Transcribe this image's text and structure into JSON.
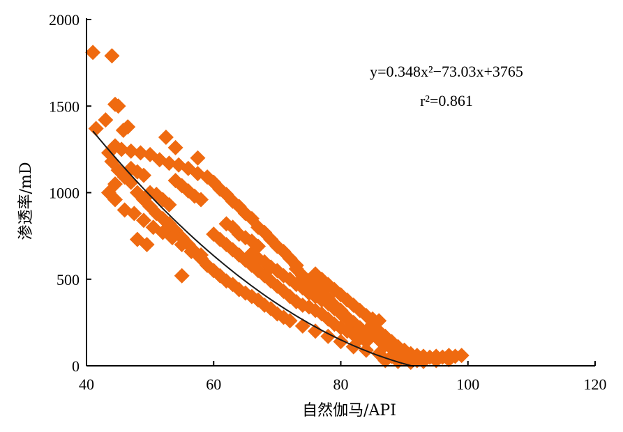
{
  "chart_data": {
    "type": "scatter",
    "xlabel": "自然伽马/API",
    "ylabel": "渗透率/mD",
    "xlim": [
      40,
      120
    ],
    "ylim": [
      0,
      2000
    ],
    "xticks": [
      40,
      60,
      80,
      100,
      120
    ],
    "yticks": [
      0,
      500,
      1000,
      1500,
      2000
    ],
    "grid": false,
    "point_color": "#ef6a10",
    "curve_color": "#1a1a1a",
    "fit": {
      "equation_label": "y=0.348x²−73.03x+3765",
      "r2_label": "r²=0.861",
      "coefficients": {
        "a": 0.348,
        "b": -73.03,
        "c": 3765
      },
      "x_range": [
        41,
        91.5
      ]
    },
    "series": [
      {
        "points": [
          [
            41,
            1810
          ],
          [
            44,
            1790
          ],
          [
            44.5,
            1510
          ],
          [
            45,
            1500
          ],
          [
            41.5,
            1370
          ],
          [
            43,
            1420
          ],
          [
            46.5,
            1380
          ],
          [
            45.8,
            1360
          ],
          [
            52.5,
            1320
          ],
          [
            54,
            1260
          ],
          [
            57.5,
            1200
          ],
          [
            44.5,
            1050
          ],
          [
            48,
            730
          ],
          [
            49.5,
            700
          ],
          [
            55,
            520
          ],
          [
            43.5,
            1230
          ],
          [
            44.5,
            1270
          ],
          [
            45.5,
            1250
          ],
          [
            47,
            1240
          ],
          [
            48.5,
            1230
          ],
          [
            50,
            1220
          ],
          [
            51.5,
            1190
          ],
          [
            53,
            1170
          ],
          [
            54.5,
            1160
          ],
          [
            56,
            1140
          ],
          [
            57.5,
            1110
          ],
          [
            44,
            1180
          ],
          [
            45,
            1130
          ],
          [
            46,
            1090
          ],
          [
            47,
            1060
          ],
          [
            48,
            1000
          ],
          [
            49,
            960
          ],
          [
            50,
            920
          ],
          [
            51,
            880
          ],
          [
            52,
            850
          ],
          [
            53,
            820
          ],
          [
            54,
            780
          ],
          [
            55,
            740
          ],
          [
            56,
            700
          ],
          [
            57,
            660
          ],
          [
            58,
            620
          ],
          [
            59,
            1090
          ],
          [
            60,
            1060
          ],
          [
            61,
            1020
          ],
          [
            62,
            990
          ],
          [
            63,
            950
          ],
          [
            64,
            920
          ],
          [
            65,
            880
          ],
          [
            66,
            850
          ],
          [
            67,
            800
          ],
          [
            68,
            770
          ],
          [
            69,
            730
          ],
          [
            70,
            690
          ],
          [
            71,
            660
          ],
          [
            72,
            620
          ],
          [
            73,
            580
          ],
          [
            59,
            580
          ],
          [
            60,
            550
          ],
          [
            61,
            520
          ],
          [
            62,
            490
          ],
          [
            63,
            470
          ],
          [
            64,
            440
          ],
          [
            65,
            420
          ],
          [
            66,
            400
          ],
          [
            67,
            380
          ],
          [
            68,
            350
          ],
          [
            69,
            330
          ],
          [
            70,
            300
          ],
          [
            71,
            280
          ],
          [
            73,
            560
          ],
          [
            74,
            520
          ],
          [
            75,
            490
          ],
          [
            76,
            460
          ],
          [
            77,
            430
          ],
          [
            78,
            390
          ],
          [
            79,
            350
          ],
          [
            80,
            320
          ],
          [
            81,
            280
          ],
          [
            82,
            250
          ],
          [
            83,
            220
          ],
          [
            72,
            260
          ],
          [
            74,
            230
          ],
          [
            76,
            200
          ],
          [
            78,
            170
          ],
          [
            80,
            140
          ],
          [
            82,
            110
          ],
          [
            84,
            90
          ],
          [
            86,
            70
          ],
          [
            88,
            55
          ],
          [
            90,
            40
          ],
          [
            85,
            240
          ],
          [
            86,
            200
          ],
          [
            87,
            170
          ],
          [
            88,
            140
          ],
          [
            89,
            110
          ],
          [
            90,
            90
          ],
          [
            91,
            70
          ],
          [
            92,
            60
          ],
          [
            93,
            55
          ],
          [
            94,
            50
          ],
          [
            95,
            55
          ],
          [
            96,
            50
          ],
          [
            97,
            60
          ],
          [
            98,
            55
          ],
          [
            99,
            60
          ],
          [
            92,
            30
          ],
          [
            93,
            25
          ],
          [
            95,
            30
          ],
          [
            97,
            35
          ],
          [
            91,
            20
          ],
          [
            89,
            25
          ],
          [
            87,
            30
          ],
          [
            64,
            760
          ],
          [
            65,
            740
          ],
          [
            66,
            720
          ],
          [
            62,
            820
          ],
          [
            63,
            800
          ],
          [
            67,
            690
          ],
          [
            58,
            960
          ],
          [
            57,
            980
          ],
          [
            56,
            1010
          ],
          [
            55,
            1040
          ],
          [
            54,
            1070
          ],
          [
            50,
            1000
          ],
          [
            51,
            990
          ],
          [
            52,
            960
          ],
          [
            53,
            930
          ],
          [
            47,
            1140
          ],
          [
            48,
            1120
          ],
          [
            49,
            1100
          ],
          [
            75,
            340
          ],
          [
            76,
            320
          ],
          [
            77,
            300
          ],
          [
            78,
            270
          ],
          [
            73,
            370
          ],
          [
            74,
            350
          ],
          [
            79,
            240
          ],
          [
            80,
            220
          ],
          [
            81,
            200
          ],
          [
            82,
            180
          ],
          [
            83,
            160
          ],
          [
            84,
            140
          ],
          [
            60,
            760
          ],
          [
            61,
            730
          ],
          [
            62,
            700
          ],
          [
            63,
            670
          ],
          [
            64,
            640
          ],
          [
            65,
            610
          ],
          [
            66,
            580
          ],
          [
            67,
            550
          ],
          [
            68,
            520
          ],
          [
            69,
            490
          ],
          [
            70,
            460
          ],
          [
            71,
            430
          ],
          [
            72,
            400
          ],
          [
            76,
            400
          ],
          [
            77,
            380
          ],
          [
            78,
            360
          ],
          [
            79,
            330
          ],
          [
            80,
            300
          ],
          [
            81,
            270
          ],
          [
            84,
            200
          ],
          [
            85,
            180
          ],
          [
            86,
            150
          ],
          [
            87,
            120
          ],
          [
            88,
            100
          ],
          [
            89,
            80
          ],
          [
            43.5,
            1000
          ],
          [
            44.5,
            960
          ],
          [
            46,
            900
          ],
          [
            47.5,
            880
          ],
          [
            49,
            840
          ],
          [
            50.5,
            800
          ],
          [
            52,
            770
          ],
          [
            53.5,
            740
          ],
          [
            55,
            700
          ],
          [
            56.5,
            660
          ],
          [
            58,
            640
          ],
          [
            66,
            650
          ],
          [
            67,
            620
          ],
          [
            68,
            600
          ],
          [
            69,
            570
          ],
          [
            70,
            550
          ],
          [
            71,
            520
          ],
          [
            72,
            500
          ],
          [
            73,
            470
          ],
          [
            74,
            450
          ],
          [
            75,
            420
          ],
          [
            85,
            270
          ],
          [
            86,
            260
          ],
          [
            84,
            290
          ],
          [
            83,
            320
          ],
          [
            82,
            350
          ],
          [
            81,
            380
          ],
          [
            80,
            410
          ],
          [
            79,
            440
          ],
          [
            78,
            470
          ],
          [
            77,
            500
          ],
          [
            76,
            530
          ]
        ]
      }
    ]
  }
}
